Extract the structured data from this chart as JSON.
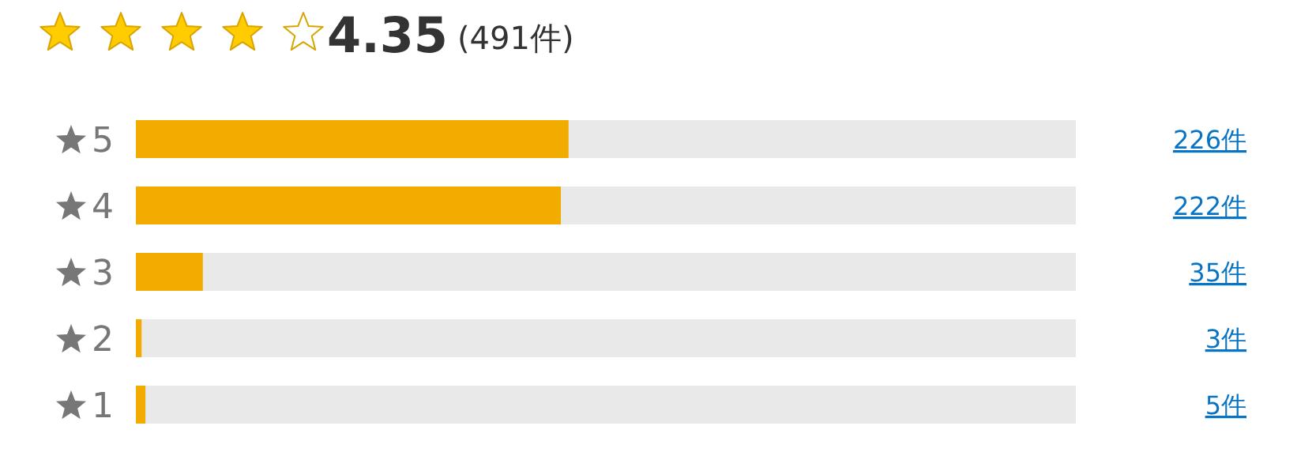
{
  "chart_data": {
    "type": "bar",
    "orientation": "horizontal",
    "title": "4.35",
    "subtitle": "(491件)",
    "categories": [
      "5",
      "4",
      "3",
      "2",
      "1"
    ],
    "values": [
      226,
      222,
      35,
      3,
      5
    ],
    "value_labels": [
      "226件",
      "222件",
      "35件",
      "3件",
      "5件"
    ],
    "color": "#f2ac00",
    "xlim": [
      0,
      491
    ]
  }
}
